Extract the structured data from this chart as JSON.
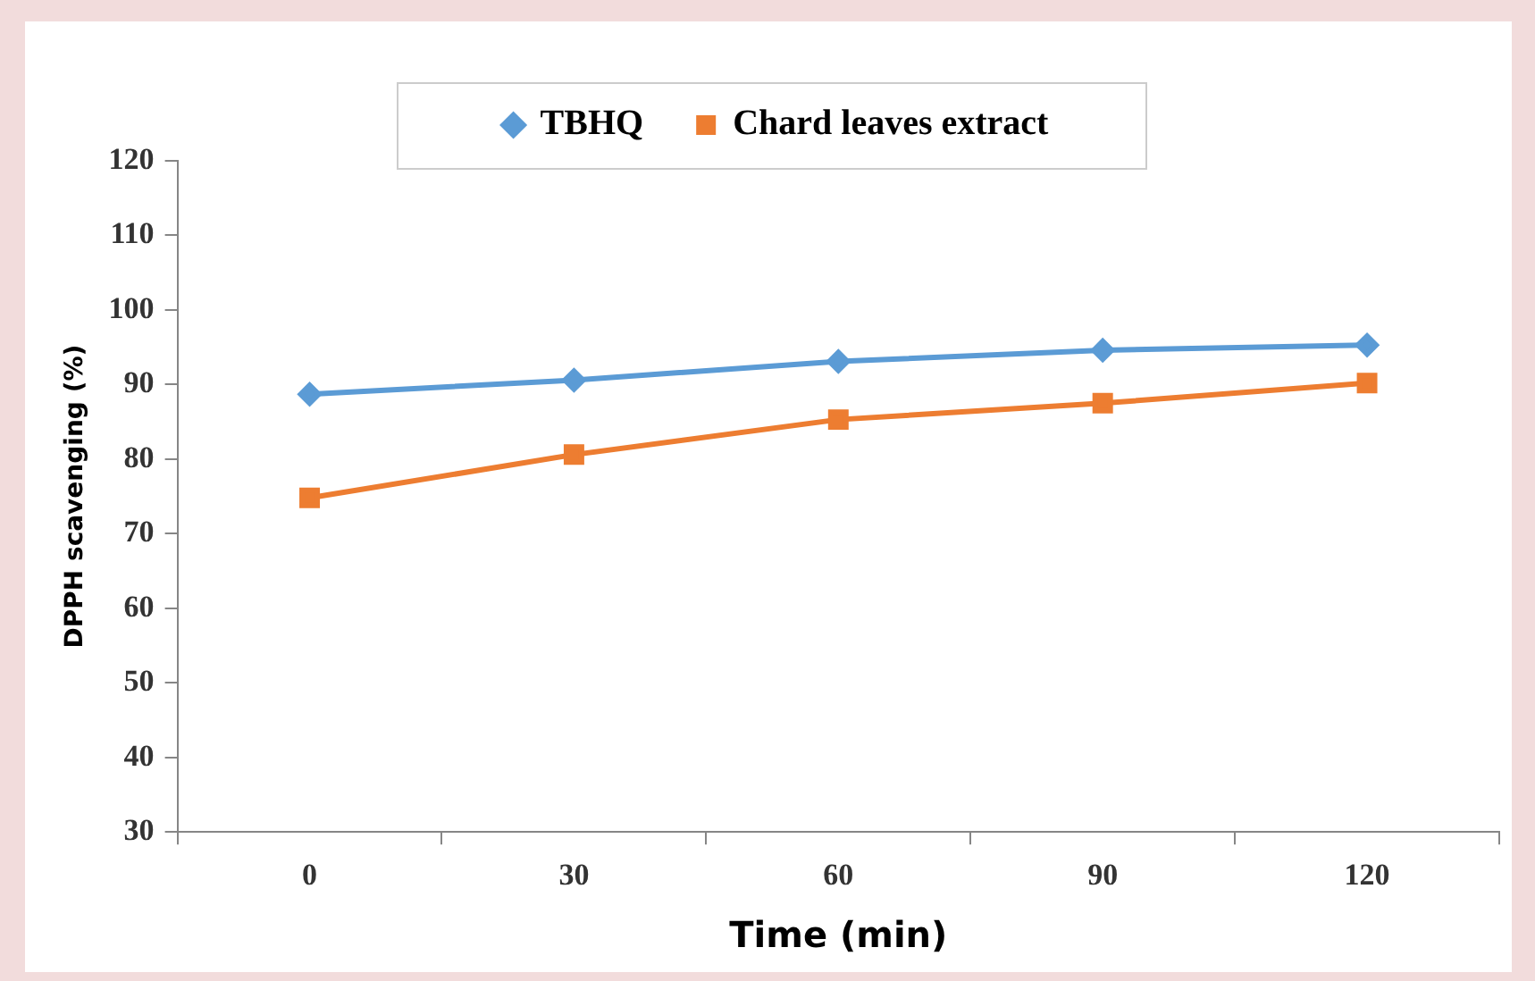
{
  "chart_data": {
    "type": "line",
    "xlabel": "Time (min)",
    "ylabel": "DPPH scavenging (%)",
    "categories": [
      "0",
      "30",
      "60",
      "90",
      "120"
    ],
    "series": [
      {
        "name": "TBHQ",
        "color": "#5b9bd5",
        "marker": "diamond",
        "values": [
          88.7,
          90.6,
          93.1,
          94.6,
          95.3
        ]
      },
      {
        "name": "Chard leaves extract",
        "color": "#ed7d31",
        "marker": "square",
        "values": [
          74.8,
          80.6,
          85.3,
          87.5,
          90.2
        ]
      }
    ],
    "ylim": [
      30,
      120
    ],
    "yticks": [
      30,
      40,
      50,
      60,
      70,
      80,
      90,
      100,
      110,
      120
    ],
    "grid": false,
    "legend": "top"
  }
}
